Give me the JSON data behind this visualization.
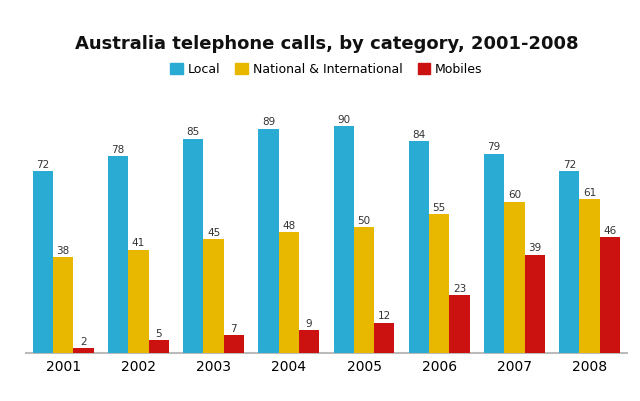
{
  "title": "Australia telephone calls, by category, 2001-2008",
  "years": [
    2001,
    2002,
    2003,
    2004,
    2005,
    2006,
    2007,
    2008
  ],
  "categories": [
    "Local",
    "National & International",
    "Mobiles"
  ],
  "colors": [
    "#29ABD4",
    "#E8B800",
    "#CC1111"
  ],
  "local": [
    72,
    78,
    85,
    89,
    90,
    84,
    79,
    72
  ],
  "national": [
    38,
    41,
    45,
    48,
    50,
    55,
    60,
    61
  ],
  "mobiles": [
    2,
    5,
    7,
    9,
    12,
    23,
    39,
    46
  ],
  "ylim": [
    0,
    105
  ],
  "bar_width": 0.27,
  "title_fontsize": 13,
  "label_fontsize": 7.5,
  "legend_fontsize": 9,
  "tick_fontsize": 10,
  "bg_color": "#FFFFFF",
  "value_color": "#333333"
}
